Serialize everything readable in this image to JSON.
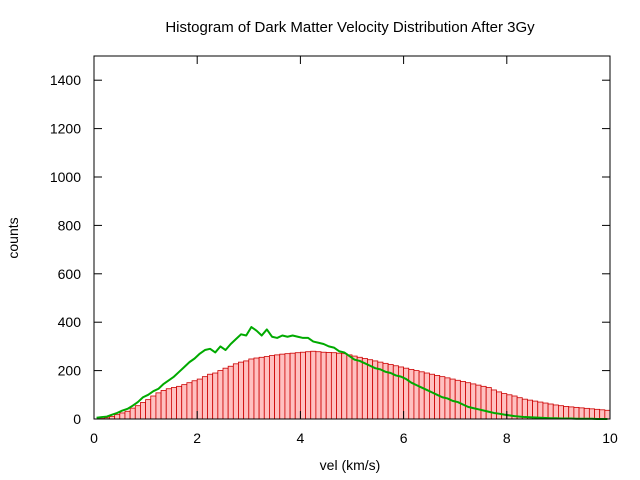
{
  "chart_data": {
    "type": "bar",
    "title": "Histogram of Dark Matter Velocity Distribution After 3Gy",
    "xlabel": "vel (km/s)",
    "ylabel": "counts",
    "xlim": [
      0,
      10
    ],
    "ylim": [
      0,
      1500
    ],
    "xticks": [
      "0",
      "2",
      "4",
      "6",
      "8",
      "10"
    ],
    "yticks": [
      "0",
      "200",
      "400",
      "600",
      "800",
      "1000",
      "1200",
      "1400"
    ],
    "grid": false,
    "legend": "none",
    "bin_width": 0.1,
    "series": [
      {
        "style": "histogram",
        "fill_color": "#ffc0c0",
        "edge_color": "#cc0000",
        "x": [
          0.0,
          0.1,
          0.2,
          0.3,
          0.4,
          0.5,
          0.6,
          0.7,
          0.8,
          0.9,
          1.0,
          1.1,
          1.2,
          1.3,
          1.4,
          1.5,
          1.6,
          1.7,
          1.8,
          1.9,
          2.0,
          2.1,
          2.2,
          2.3,
          2.4,
          2.5,
          2.6,
          2.7,
          2.8,
          2.9,
          3.0,
          3.1,
          3.2,
          3.3,
          3.4,
          3.5,
          3.6,
          3.7,
          3.8,
          3.9,
          4.0,
          4.1,
          4.2,
          4.3,
          4.4,
          4.5,
          4.6,
          4.7,
          4.8,
          4.9,
          5.0,
          5.1,
          5.2,
          5.3,
          5.4,
          5.5,
          5.6,
          5.7,
          5.8,
          5.9,
          6.0,
          6.1,
          6.2,
          6.3,
          6.4,
          6.5,
          6.6,
          6.7,
          6.8,
          6.9,
          7.0,
          7.1,
          7.2,
          7.3,
          7.4,
          7.5,
          7.6,
          7.7,
          7.8,
          7.9,
          8.0,
          8.1,
          8.2,
          8.3,
          8.4,
          8.5,
          8.6,
          8.7,
          8.8,
          8.9,
          9.0,
          9.1,
          9.2,
          9.3,
          9.4,
          9.5,
          9.6,
          9.7,
          9.8,
          9.9
        ],
        "values": [
          0,
          2,
          5,
          10,
          18,
          25,
          32,
          45,
          55,
          68,
          80,
          95,
          108,
          118,
          125,
          130,
          135,
          142,
          150,
          158,
          165,
          175,
          185,
          190,
          200,
          210,
          218,
          228,
          235,
          240,
          248,
          252,
          255,
          258,
          262,
          265,
          268,
          270,
          272,
          274,
          276,
          278,
          280,
          278,
          276,
          275,
          274,
          272,
          270,
          265,
          260,
          255,
          250,
          245,
          240,
          235,
          230,
          225,
          220,
          215,
          210,
          205,
          200,
          195,
          190,
          185,
          180,
          175,
          170,
          165,
          160,
          155,
          150,
          145,
          140,
          135,
          130,
          120,
          112,
          105,
          100,
          95,
          88,
          82,
          78,
          74,
          70,
          66,
          62,
          58,
          55,
          52,
          50,
          48,
          46,
          44,
          42,
          40,
          38,
          36
        ]
      },
      {
        "style": "line",
        "color": "#00aa00",
        "x": [
          0.05,
          0.15,
          0.25,
          0.35,
          0.45,
          0.55,
          0.65,
          0.75,
          0.85,
          0.95,
          1.05,
          1.15,
          1.25,
          1.35,
          1.45,
          1.55,
          1.65,
          1.75,
          1.85,
          1.95,
          2.05,
          2.15,
          2.25,
          2.35,
          2.45,
          2.55,
          2.65,
          2.75,
          2.85,
          2.95,
          3.05,
          3.15,
          3.25,
          3.35,
          3.45,
          3.55,
          3.65,
          3.75,
          3.85,
          3.95,
          4.05,
          4.15,
          4.25,
          4.35,
          4.45,
          4.55,
          4.65,
          4.75,
          4.85,
          4.95,
          5.05,
          5.15,
          5.25,
          5.35,
          5.45,
          5.55,
          5.65,
          5.75,
          5.85,
          5.95,
          6.05,
          6.15,
          6.25,
          6.35,
          6.45,
          6.55,
          6.65,
          6.75,
          6.85,
          6.95,
          7.05,
          7.15,
          7.25,
          7.35,
          7.45,
          7.55,
          7.65,
          7.75,
          7.85,
          7.95,
          8.05,
          8.15,
          8.25,
          8.35,
          8.45,
          8.55,
          8.65,
          8.75,
          8.85,
          8.95,
          9.05,
          9.15,
          9.25,
          9.35,
          9.45,
          9.55,
          9.65,
          9.75,
          9.85,
          9.95
        ],
        "values": [
          5,
          8,
          10,
          18,
          25,
          35,
          42,
          55,
          70,
          90,
          100,
          115,
          125,
          145,
          160,
          175,
          195,
          215,
          235,
          250,
          270,
          285,
          290,
          275,
          300,
          285,
          310,
          330,
          350,
          345,
          380,
          365,
          345,
          370,
          340,
          335,
          345,
          340,
          345,
          340,
          335,
          335,
          320,
          315,
          310,
          300,
          295,
          280,
          275,
          260,
          245,
          240,
          230,
          220,
          210,
          205,
          195,
          190,
          180,
          175,
          165,
          150,
          140,
          130,
          120,
          110,
          100,
          90,
          85,
          75,
          70,
          60,
          50,
          45,
          40,
          35,
          30,
          25,
          22,
          18,
          15,
          12,
          10,
          8,
          7,
          6,
          5,
          4,
          3,
          3,
          2,
          2,
          2,
          1,
          1,
          1,
          1,
          0,
          0,
          0
        ]
      }
    ]
  }
}
